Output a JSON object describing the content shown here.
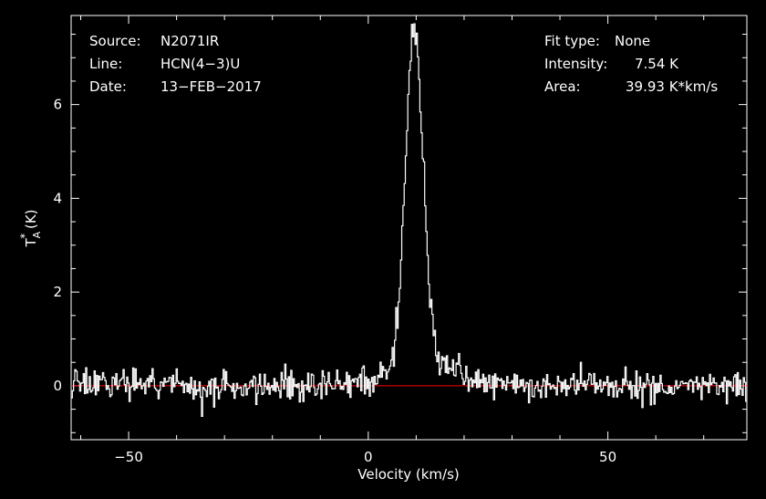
{
  "chart_data": {
    "type": "line",
    "xlabel": "Velocity (km/s)",
    "ylabel_main": "T",
    "ylabel_sub": "A",
    "ylabel_sup": "*",
    "ylabel_unit": " (K)",
    "xlim": [
      -62,
      79
    ],
    "ylim": [
      -1.15,
      7.9
    ],
    "xticks": [
      -50,
      0,
      50
    ],
    "yticks": [
      0,
      2,
      4,
      6
    ],
    "grid": false,
    "baseline": 0,
    "colors": {
      "background": "#000000",
      "spectrum": "#ffffff",
      "baseline": "#ff0000",
      "frame": "#ffffff"
    },
    "spectrum": {
      "x_start": -62,
      "x_end": 79,
      "n_channels": 560,
      "rms_noise": 0.16,
      "components": [
        {
          "center": 9.6,
          "peak": 7.1,
          "fwhm": 4.4
        },
        {
          "center": 11.5,
          "peak": 0.5,
          "fwhm": 16
        }
      ],
      "peak_value": 7.54
    },
    "header": {
      "source_label": "Source:",
      "source": "N2071IR",
      "line_label": "Line:",
      "line": "HCN(4−3)U",
      "date_label": "Date:",
      "date": "13−FEB−2017",
      "fit_type_label": "Fit type:",
      "fit_type": "None",
      "intensity_label": "Intensity:",
      "intensity": "7.54 K",
      "area_label": "Area:",
      "area": "39.93 K*km/s"
    }
  }
}
